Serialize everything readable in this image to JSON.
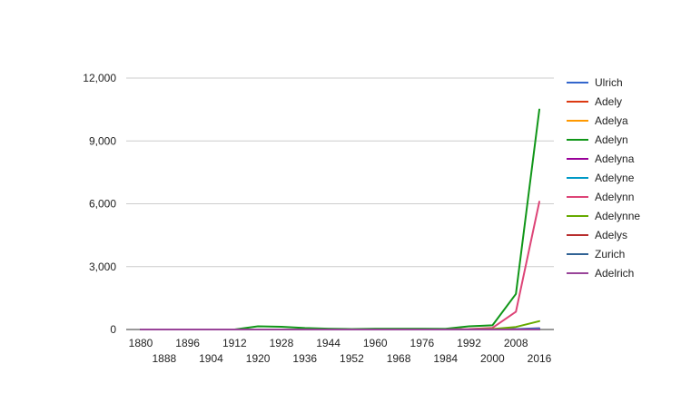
{
  "chart_data": {
    "type": "line",
    "title": "",
    "xlabel": "",
    "ylabel": "",
    "ylim": [
      0,
      12000
    ],
    "y_ticks": [
      0,
      3000,
      6000,
      9000,
      12000
    ],
    "y_tick_labels": [
      "0",
      "3,000",
      "6,000",
      "9,000",
      "12,000"
    ],
    "x_range": [
      1880,
      2016
    ],
    "x_ticks_upper": [
      "1880",
      "1896",
      "1912",
      "1928",
      "1944",
      "1960",
      "1976",
      "1992",
      "2008"
    ],
    "x_ticks_lower": [
      "1888",
      "1904",
      "1920",
      "1936",
      "1952",
      "1968",
      "1984",
      "2000",
      "2016"
    ],
    "grid": true,
    "legend_position": "right",
    "series": [
      {
        "name": "Ulrich",
        "color": "#3366cc",
        "x": [
          1880,
          1900,
          1920,
          1940,
          1960,
          1980,
          2000,
          2016
        ],
        "values": [
          0,
          0,
          0,
          0,
          0,
          0,
          0,
          0
        ]
      },
      {
        "name": "Adely",
        "color": "#dc3912",
        "x": [
          1880,
          1900,
          1920,
          1940,
          1960,
          1980,
          2000,
          2016
        ],
        "values": [
          0,
          0,
          0,
          0,
          0,
          0,
          0,
          0
        ]
      },
      {
        "name": "Adelya",
        "color": "#ff9900",
        "x": [
          1880,
          1900,
          1920,
          1940,
          1960,
          1980,
          2000,
          2016
        ],
        "values": [
          0,
          0,
          0,
          0,
          0,
          0,
          0,
          0
        ]
      },
      {
        "name": "Adelyn",
        "color": "#109618",
        "x": [
          1880,
          1888,
          1896,
          1904,
          1912,
          1920,
          1928,
          1936,
          1944,
          1952,
          1960,
          1968,
          1976,
          1984,
          1992,
          2000,
          2008,
          2016
        ],
        "values": [
          0,
          0,
          0,
          0,
          0,
          150,
          130,
          70,
          40,
          20,
          40,
          40,
          40,
          30,
          150,
          200,
          1700,
          10500
        ]
      },
      {
        "name": "Adelyna",
        "color": "#990099",
        "x": [
          1880,
          1900,
          1920,
          1940,
          1960,
          1980,
          2000,
          2008,
          2016
        ],
        "values": [
          0,
          0,
          0,
          0,
          0,
          0,
          0,
          20,
          60
        ]
      },
      {
        "name": "Adelyne",
        "color": "#0099c6",
        "x": [
          1880,
          1900,
          1920,
          1940,
          1960,
          1980,
          2000,
          2008,
          2016
        ],
        "values": [
          0,
          0,
          0,
          0,
          0,
          0,
          0,
          10,
          40
        ]
      },
      {
        "name": "Adelynn",
        "color": "#dd4477",
        "x": [
          1880,
          1888,
          1896,
          1904,
          1912,
          1920,
          1928,
          1936,
          1944,
          1952,
          1960,
          1968,
          1976,
          1984,
          1992,
          2000,
          2008,
          2016
        ],
        "values": [
          0,
          0,
          0,
          0,
          0,
          0,
          0,
          0,
          0,
          0,
          0,
          0,
          0,
          0,
          20,
          80,
          850,
          6100
        ]
      },
      {
        "name": "Adelynne",
        "color": "#66aa00",
        "x": [
          1880,
          1900,
          1920,
          1940,
          1960,
          1980,
          1992,
          2000,
          2008,
          2016
        ],
        "values": [
          0,
          0,
          0,
          0,
          0,
          0,
          0,
          20,
          120,
          400
        ]
      },
      {
        "name": "Adelys",
        "color": "#b82e2e",
        "x": [
          1880,
          1900,
          1920,
          1940,
          1960,
          1980,
          2000,
          2016
        ],
        "values": [
          0,
          0,
          0,
          0,
          0,
          0,
          0,
          0
        ]
      },
      {
        "name": "Zurich",
        "color": "#316395",
        "x": [
          1880,
          1900,
          1920,
          1940,
          1960,
          1980,
          2000,
          2016
        ],
        "values": [
          0,
          0,
          0,
          0,
          0,
          0,
          0,
          0
        ]
      },
      {
        "name": "Adelrich",
        "color": "#994499",
        "x": [
          1880,
          1900,
          1920,
          1940,
          1960,
          1980,
          2000,
          2016
        ],
        "values": [
          0,
          0,
          0,
          0,
          0,
          0,
          0,
          0
        ]
      }
    ]
  }
}
